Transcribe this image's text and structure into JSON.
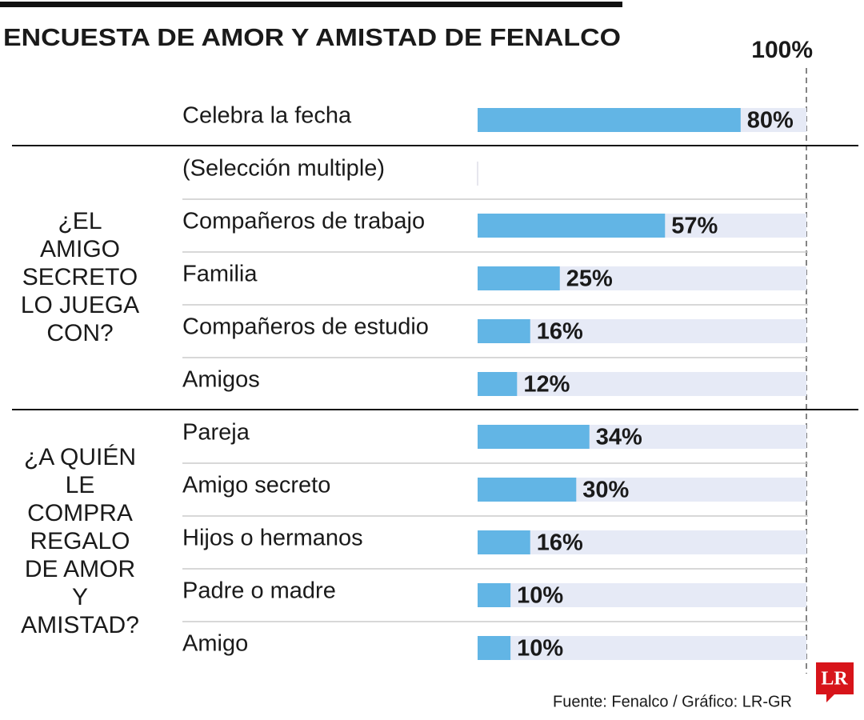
{
  "chart_data": {
    "type": "bar",
    "title": "ENCUESTA DE AMOR Y AMISTAD DE FENALCO",
    "xlim": [
      0,
      100
    ],
    "xticks": [
      {
        "value": 100,
        "label": "100%"
      }
    ],
    "color": "#62b5e5",
    "track_color": "#e6eaf6",
    "groups": [
      {
        "categories": [
          "Celebra la fecha"
        ],
        "values": [
          80
        ],
        "value_labels": [
          "80%"
        ]
      },
      {
        "label": [
          "¿EL",
          "AMIGO",
          "SECRETO",
          "LO JUEGA",
          "CON?"
        ],
        "note": "(Selección multiple)",
        "categories": [
          "Compañeros de trabajo",
          "Familia",
          "Compañeros de estudio",
          "Amigos"
        ],
        "values": [
          57,
          25,
          16,
          12
        ],
        "value_labels": [
          "57%",
          "25%",
          "16%",
          "12%"
        ]
      },
      {
        "label": [
          "¿A QUIÉN",
          "LE",
          "COMPRA",
          "REGALO",
          "DE AMOR",
          "Y",
          "AMISTAD?"
        ],
        "categories": [
          "Pareja",
          "Amigo secreto",
          "Hijos o hermanos",
          "Padre o madre",
          "Amigo"
        ],
        "values": [
          34,
          30,
          16,
          10,
          10
        ],
        "value_labels": [
          "34%",
          "30%",
          "16%",
          "10%",
          "10%"
        ]
      }
    ],
    "source": "Fuente: Fenalco / Gráfico: LR-GR",
    "logo": "LR"
  }
}
